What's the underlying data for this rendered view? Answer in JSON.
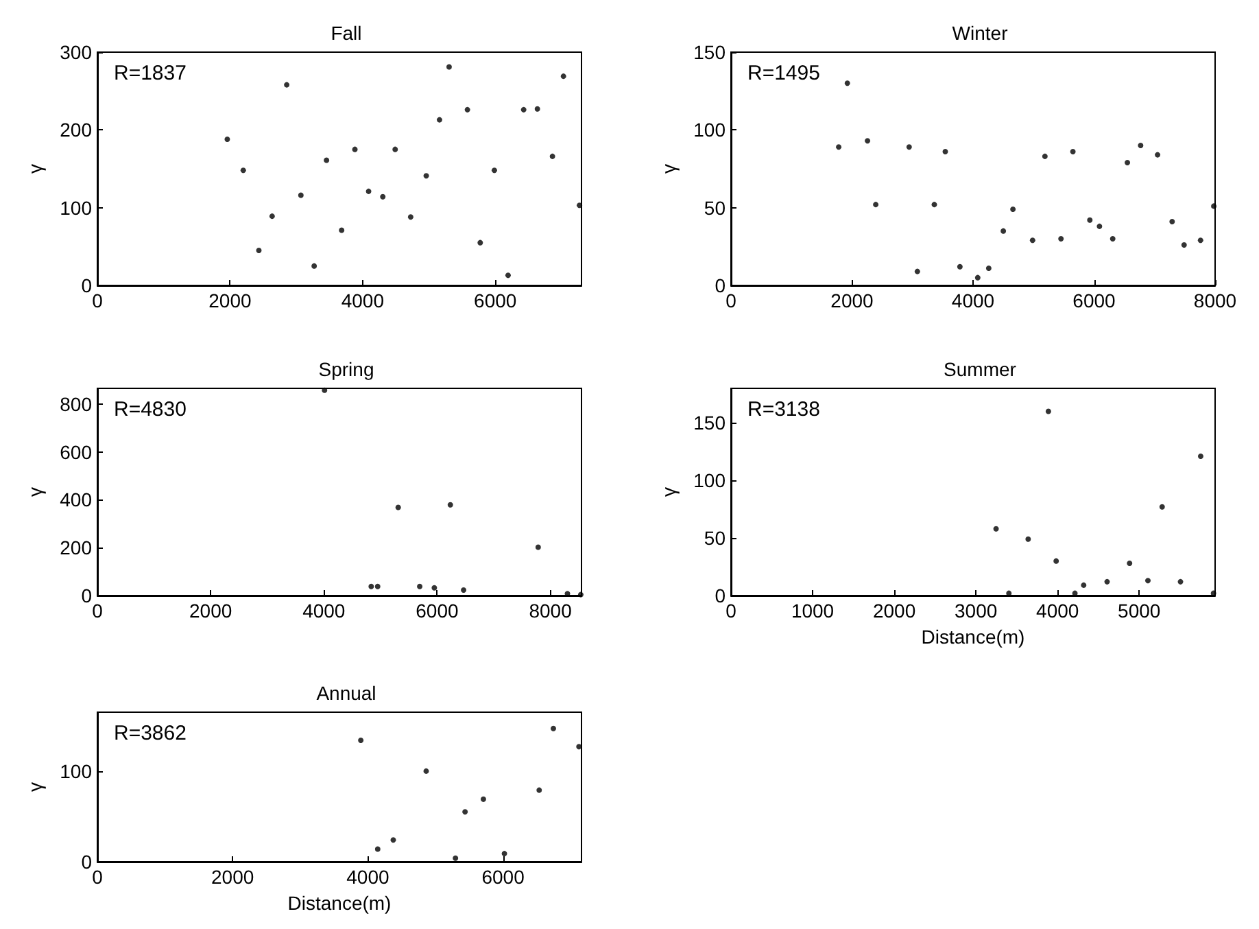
{
  "chart_data": [
    {
      "type": "scatter",
      "title": "Fall",
      "ylabel": "γ",
      "annotations": [
        "R=1837"
      ],
      "marker": "circle",
      "grid": false,
      "xlim": [
        0,
        7300
      ],
      "xticks": [
        0,
        2000,
        4000,
        6000
      ],
      "ylim": [
        0,
        300
      ],
      "yticks": [
        0,
        100,
        200,
        300
      ],
      "series": [
        {
          "color": "#000000",
          "x": [
            1959,
            2200,
            2435,
            2635,
            2855,
            3069,
            3269,
            3455,
            3683,
            3883,
            4090,
            4304,
            4490,
            4724,
            4959,
            5159,
            5304,
            5580,
            5773,
            5986,
            6193,
            6428,
            6635,
            6862,
            7028,
            7269
          ],
          "values": [
            188,
            148,
            45,
            89,
            258,
            116,
            25,
            161,
            71,
            175,
            121,
            114,
            175,
            88,
            141,
            213,
            281,
            226,
            55,
            148,
            13,
            226,
            227,
            166,
            269,
            103
          ]
        }
      ]
    },
    {
      "type": "scatter",
      "title": "Winter",
      "ylabel": "γ",
      "annotations": [
        "R=1495"
      ],
      "marker": "circle",
      "grid": false,
      "xlim": [
        0,
        8000
      ],
      "xticks": [
        0,
        2000,
        4000,
        6000,
        8000
      ],
      "ylim": [
        0,
        150
      ],
      "yticks": [
        0,
        50,
        100,
        150
      ],
      "series": [
        {
          "color": "#000000",
          "x": [
            1923,
            1780,
            2256,
            2392,
            2944,
            3080,
            3360,
            3541,
            3783,
            4077,
            4259,
            4500,
            4659,
            4984,
            5188,
            5453,
            5650,
            5930,
            6089,
            6308,
            6550,
            6769,
            7049,
            7290,
            7487,
            7759,
            7978
          ],
          "values": [
            130,
            89,
            93,
            52,
            89,
            9,
            52,
            86,
            12,
            5,
            11,
            35,
            49,
            29,
            83,
            30,
            86,
            42,
            38,
            30,
            79,
            90,
            84,
            41,
            26,
            29,
            51
          ]
        }
      ]
    },
    {
      "type": "scatter",
      "title": "Spring",
      "ylabel": "γ",
      "annotations": [
        "R=4830"
      ],
      "marker": "circle",
      "grid": false,
      "xlim": [
        0,
        8550
      ],
      "xticks": [
        0,
        2000,
        4000,
        6000,
        8000
      ],
      "ylim": [
        0,
        865
      ],
      "yticks": [
        0,
        200,
        400,
        600,
        800
      ],
      "series": [
        {
          "color": "#000000",
          "x": [
            4012,
            4836,
            4950,
            5313,
            5693,
            5951,
            6234,
            6468,
            7785,
            8302,
            8537
          ],
          "values": [
            857,
            38,
            38,
            368,
            38,
            32,
            379,
            23,
            202,
            8,
            4
          ]
        }
      ]
    },
    {
      "type": "scatter",
      "title": "Summer",
      "xlabel": "Distance(m)",
      "ylabel": "γ",
      "annotations": [
        "R=3138"
      ],
      "marker": "circle",
      "grid": false,
      "xlim": [
        0,
        5930
      ],
      "xticks": [
        0,
        1000,
        2000,
        3000,
        4000,
        5000
      ],
      "ylim": [
        0,
        180
      ],
      "yticks": [
        0,
        50,
        100,
        150
      ],
      "series": [
        {
          "color": "#000000",
          "x": [
            3247,
            3404,
            3640,
            3888,
            3983,
            4213,
            4320,
            4607,
            4882,
            5107,
            5281,
            5506,
            5753,
            5910
          ],
          "values": [
            58,
            2,
            49,
            160,
            30,
            2,
            9,
            12,
            28,
            13,
            77,
            12,
            121,
            2
          ]
        }
      ]
    },
    {
      "type": "scatter",
      "title": "Annual",
      "xlabel": "Distance(m)",
      "ylabel": "γ",
      "annotations": [
        "R=3862"
      ],
      "marker": "circle",
      "grid": false,
      "xlim": [
        0,
        7160
      ],
      "xticks": [
        0,
        2000,
        4000,
        6000
      ],
      "ylim": [
        0,
        165
      ],
      "yticks": [
        0,
        100
      ],
      "series": [
        {
          "color": "#000000",
          "x": [
            3896,
            4146,
            4376,
            4863,
            5296,
            5438,
            5709,
            6020,
            6534,
            6744,
            7122
          ],
          "values": [
            134,
            14,
            24,
            100,
            4,
            55,
            69,
            9,
            79,
            147,
            127
          ]
        }
      ]
    }
  ]
}
